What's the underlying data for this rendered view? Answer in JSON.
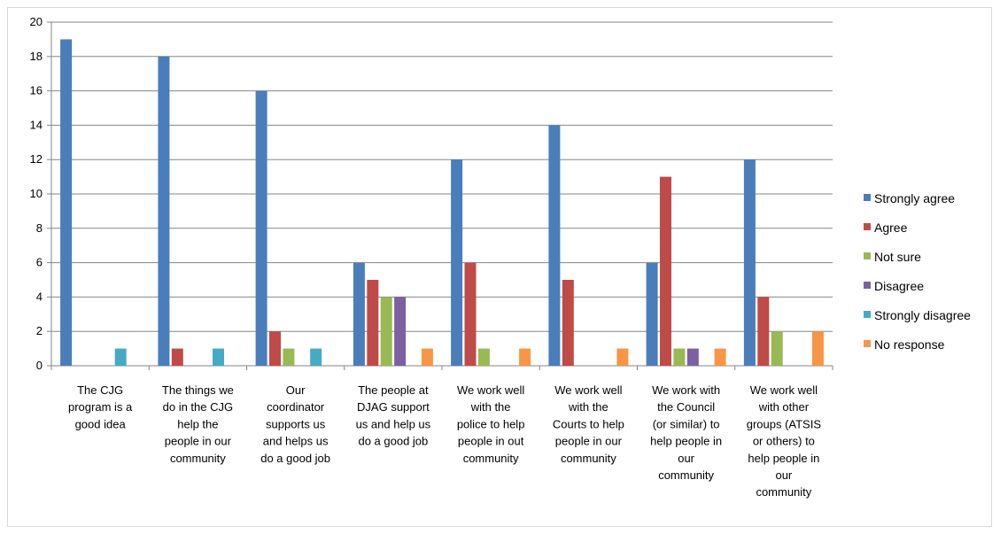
{
  "chart_data": {
    "type": "bar",
    "title": "",
    "xlabel": "",
    "ylabel": "",
    "ylim": [
      0,
      20
    ],
    "yticks": [
      0,
      2,
      4,
      6,
      8,
      10,
      12,
      14,
      16,
      18,
      20
    ],
    "grid": true,
    "legend_position": "right",
    "categories": [
      [
        "The CJG",
        "program is a",
        "good idea"
      ],
      [
        "The things we",
        "do in the CJG",
        "help the",
        "people in our",
        "community"
      ],
      [
        "Our",
        "coordinator",
        "supports us",
        "and helps us",
        "do a good job"
      ],
      [
        "The people at",
        "DJAG support",
        "us and  help us",
        "do a good  job"
      ],
      [
        "We work well",
        "with the",
        "police to help",
        "people in out",
        "community"
      ],
      [
        "We work well",
        "with the",
        "Courts to help",
        "people in our",
        "community"
      ],
      [
        "We work with",
        "the Council",
        "(or similar) to",
        "help people in",
        "our",
        "community"
      ],
      [
        "We work well",
        "with other",
        "groups (ATSIS",
        "or others) to",
        "help people in",
        "our",
        "community"
      ]
    ],
    "series": [
      {
        "name": "Strongly agree",
        "color": "#4a7ebb",
        "values": [
          19,
          18,
          16,
          6,
          12,
          14,
          6,
          12
        ]
      },
      {
        "name": "Agree",
        "color": "#be4b48",
        "values": [
          0,
          1,
          2,
          5,
          6,
          5,
          11,
          4
        ]
      },
      {
        "name": "Not sure",
        "color": "#98b954",
        "values": [
          0,
          0,
          1,
          4,
          1,
          0,
          1,
          2
        ]
      },
      {
        "name": "Disagree",
        "color": "#7d60a0",
        "values": [
          0,
          0,
          0,
          4,
          0,
          0,
          1,
          0
        ]
      },
      {
        "name": "Strongly disagree",
        "color": "#46aac4",
        "values": [
          1,
          1,
          1,
          0,
          0,
          0,
          0,
          0
        ]
      },
      {
        "name": "No response",
        "color": "#f79646",
        "values": [
          0,
          0,
          0,
          1,
          1,
          1,
          1,
          2
        ]
      }
    ]
  }
}
